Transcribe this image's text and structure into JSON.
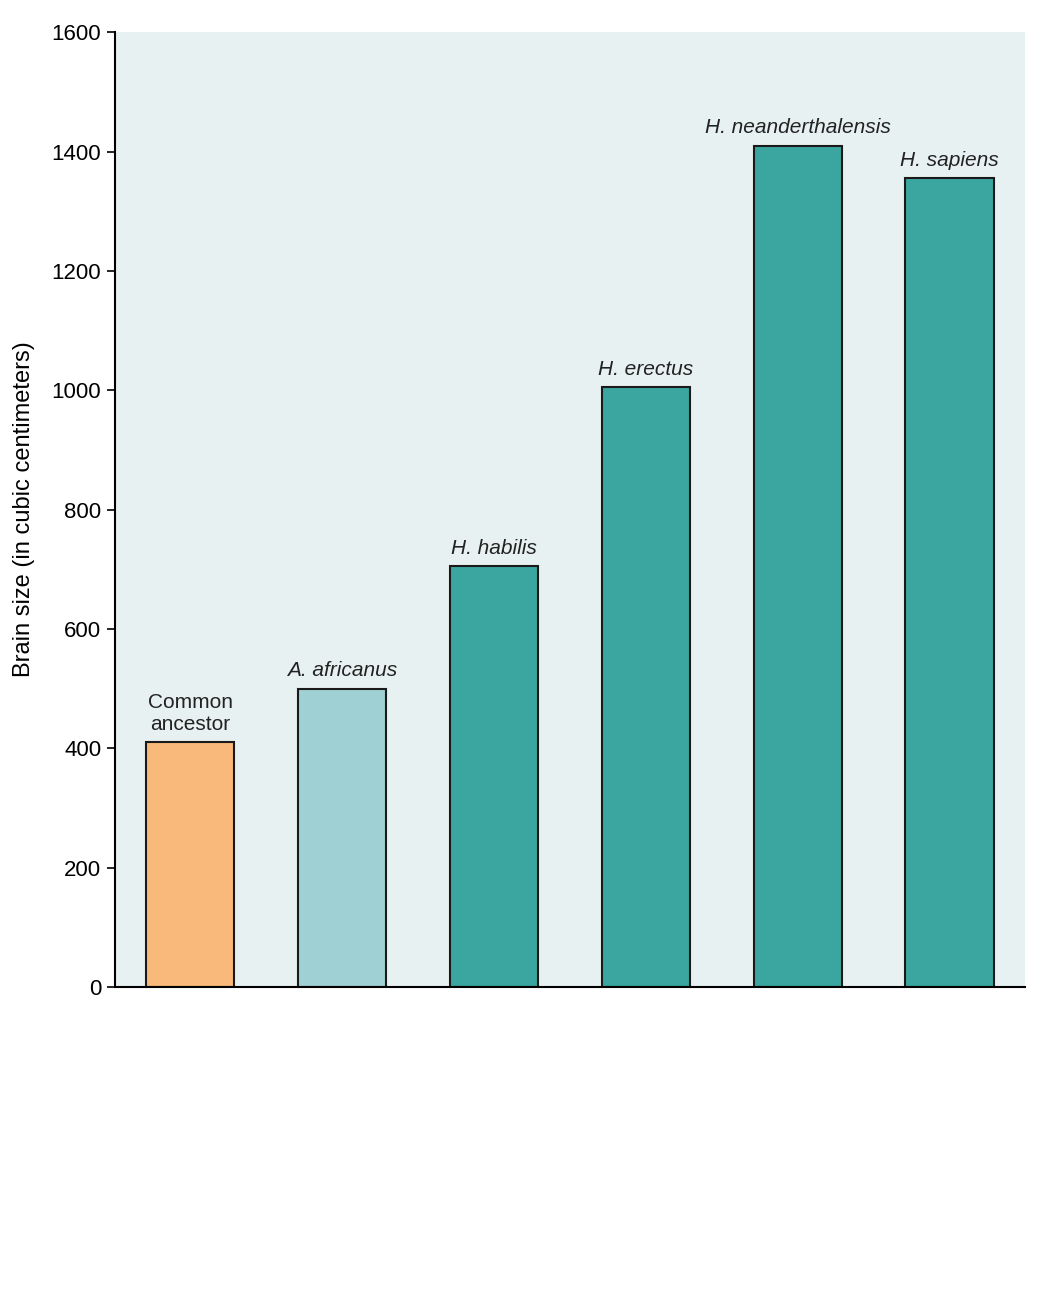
{
  "chart_data": {
    "type": "bar",
    "y_label": "Brain size (in cubic centimeters)",
    "categories": [
      "Common\nancestor",
      "A. africanus",
      "H. habilis",
      "H. erectus",
      "H. neanderthalensis",
      "H. sapiens"
    ],
    "values": [
      410,
      500,
      705,
      1005,
      1410,
      1355
    ],
    "colors": [
      "#f9b97a",
      "#9fd0d4",
      "#3ba69f",
      "#3ba69f",
      "#3ba69f",
      "#3ba69f"
    ],
    "ylim": [
      0,
      1600
    ],
    "yticks": [
      0,
      200,
      400,
      600,
      800,
      1000,
      1200,
      1400,
      1600
    ],
    "grid": false,
    "tick_labels": "y"
  }
}
